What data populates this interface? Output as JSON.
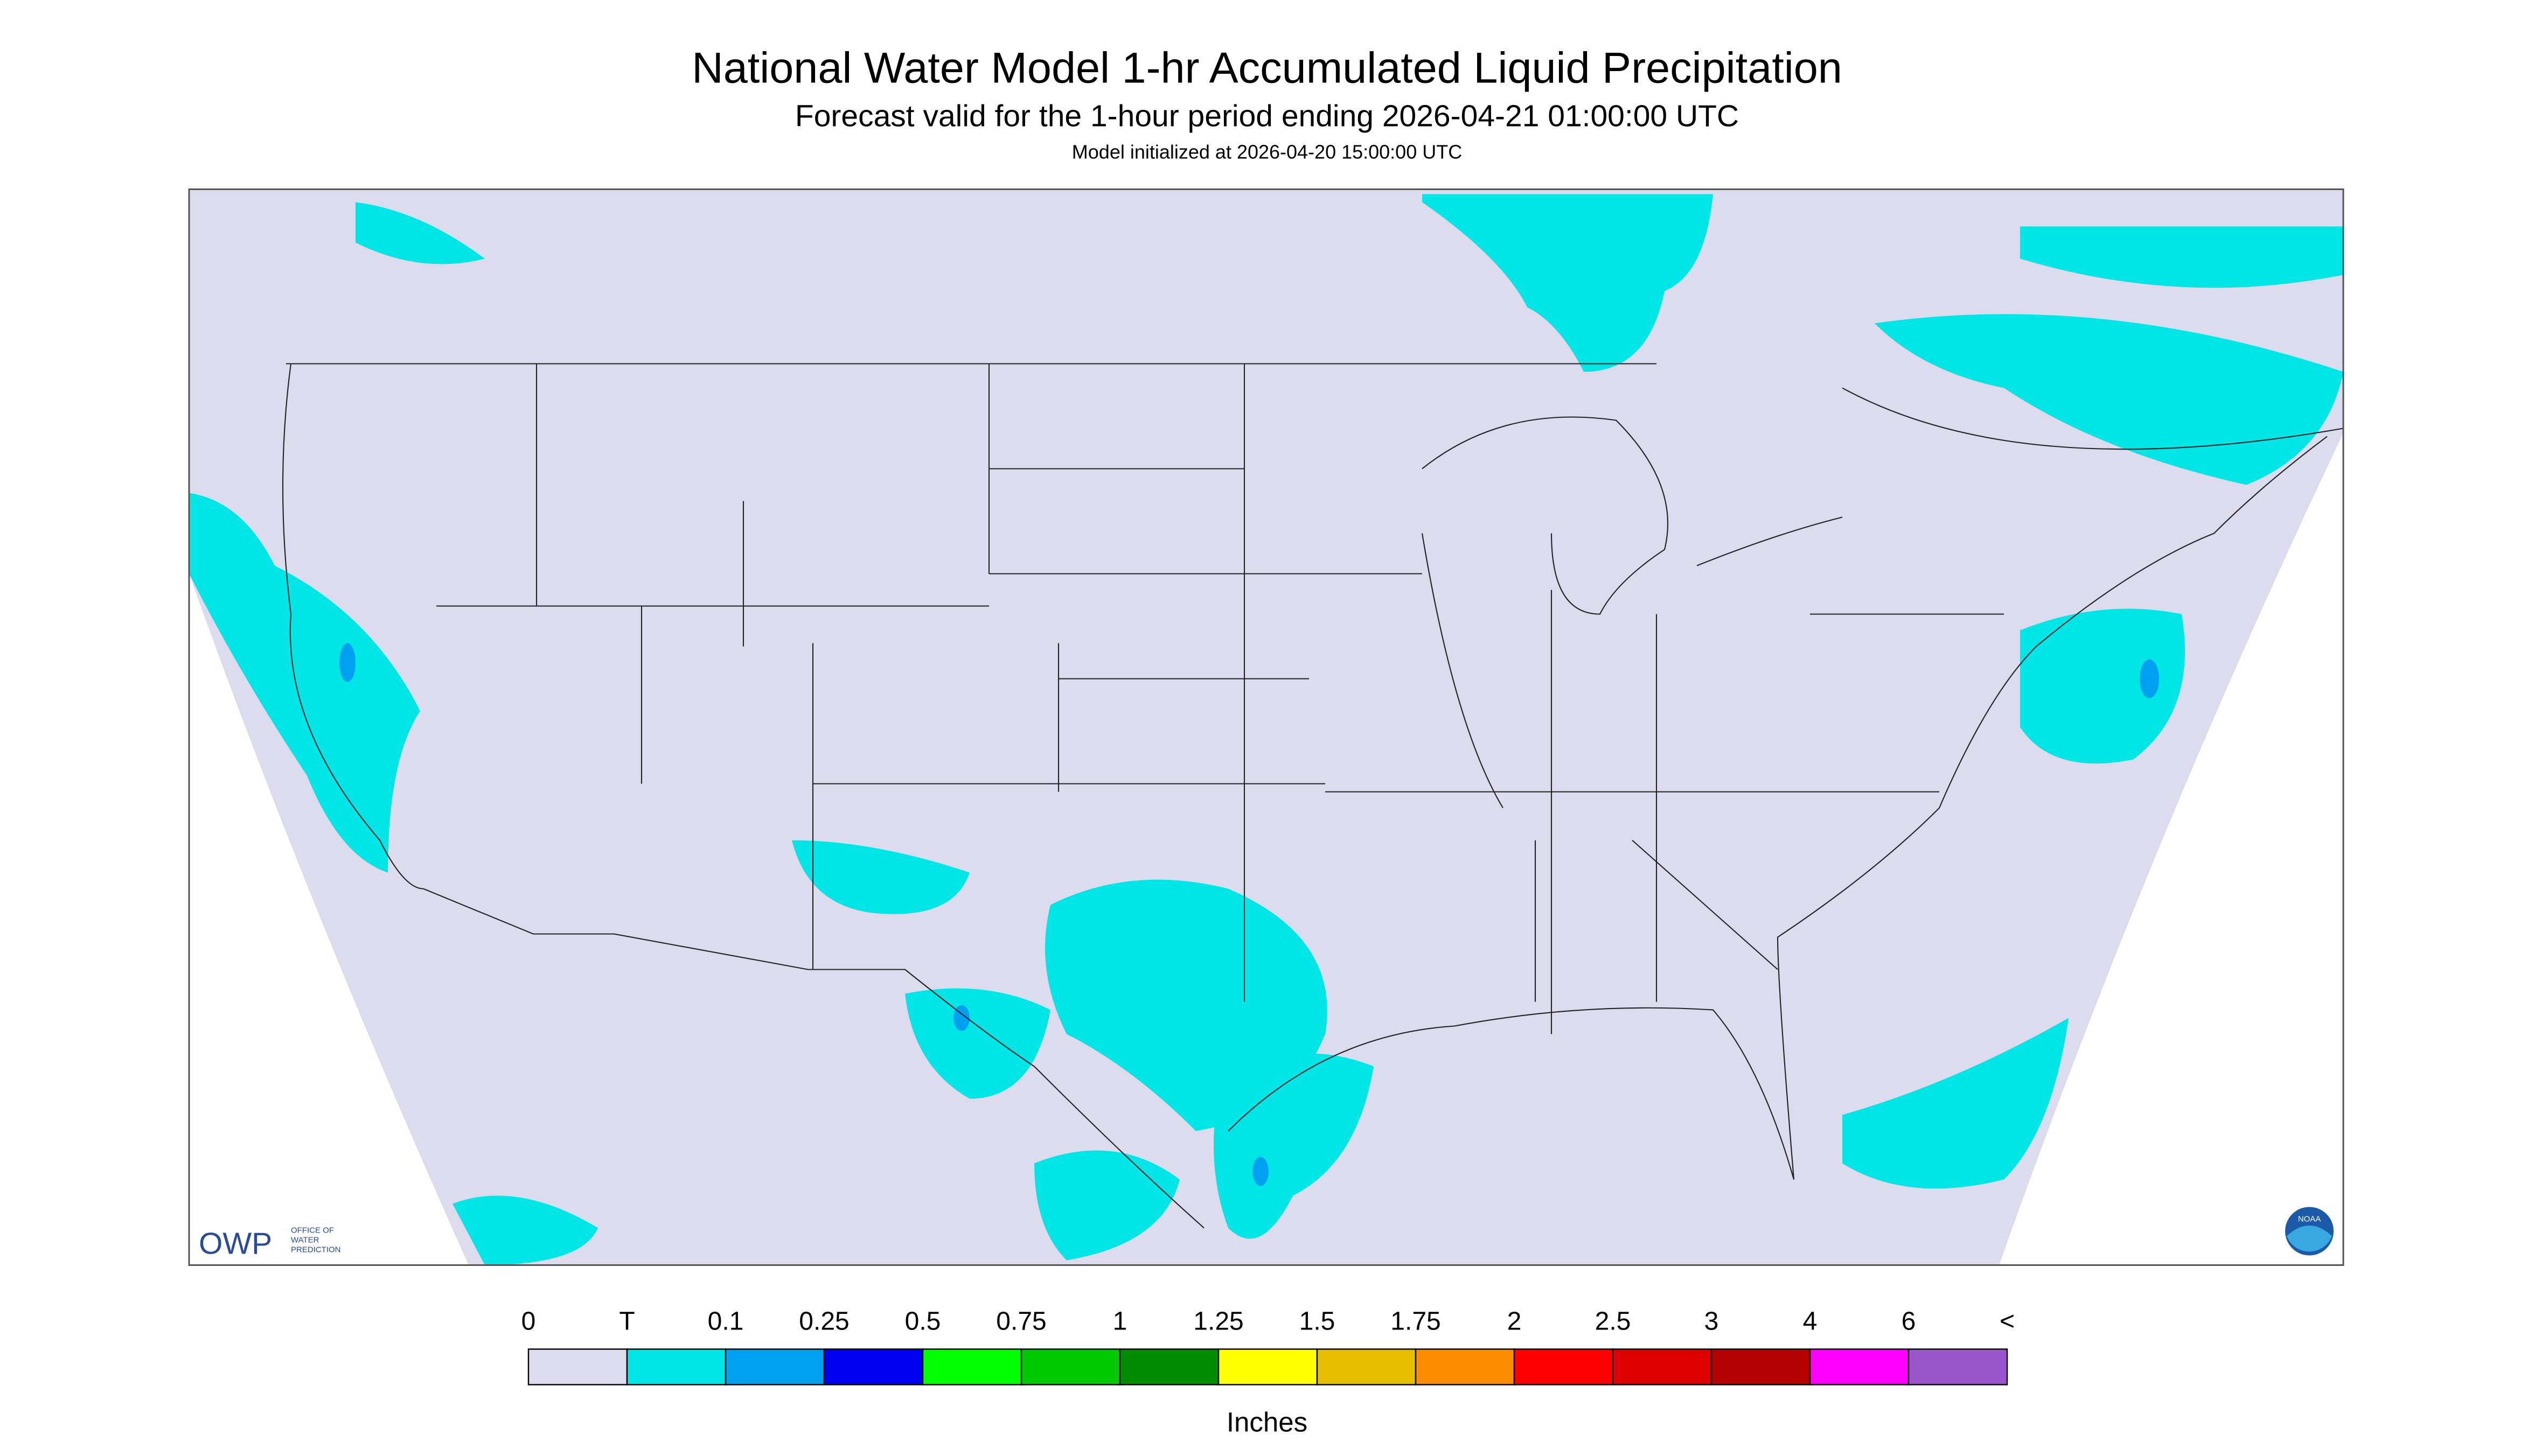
{
  "header": {
    "title": "National Water Model 1-hr Accumulated Liquid Precipitation",
    "subtitle": "Forecast valid for the 1-hour period ending 2026-04-21 01:00:00 UTC",
    "note": "Model initialized at 2026-04-20 15:00:00 UTC"
  },
  "logos": {
    "owp": "OWP",
    "owp_text": [
      "OFFICE OF",
      "WATER",
      "PREDICTION"
    ],
    "noaa": "NOAA"
  },
  "legend": {
    "labels": [
      "0",
      "T",
      "0.1",
      "0.25",
      "0.5",
      "0.75",
      "1",
      "1.25",
      "1.5",
      "1.75",
      "2",
      "2.5",
      "3",
      "4",
      "6",
      "<"
    ],
    "colors": [
      "#dcdcee",
      "#00e6e6",
      "#00a0f0",
      "#0000f0",
      "#00ff00",
      "#00c800",
      "#008c00",
      "#ffff00",
      "#e6be00",
      "#ff8c00",
      "#ff0000",
      "#dc0000",
      "#b40000",
      "#ff00ff",
      "#9955c9"
    ],
    "unit": "Inches"
  }
}
